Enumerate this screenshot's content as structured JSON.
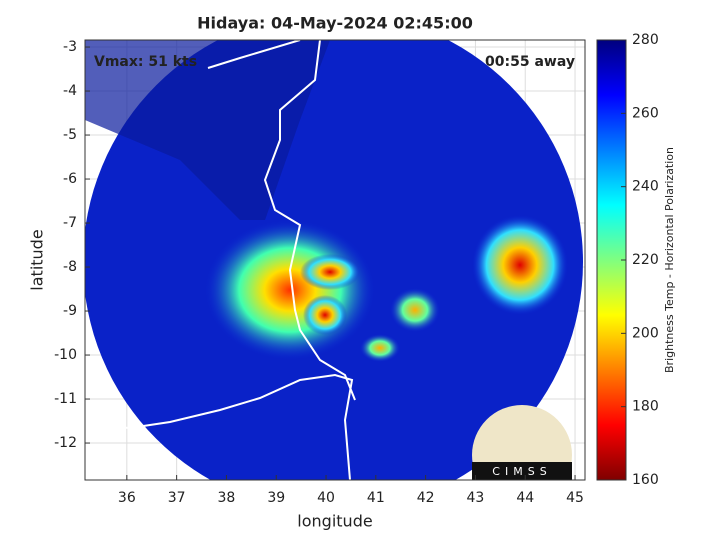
{
  "chart_data": {
    "type": "image",
    "title": "Hidaya: 04-May-2024 02:45:00",
    "annotations": [
      "Vmax: 51 kts",
      "00:55 away"
    ],
    "xlabel": "longitude",
    "ylabel": "latitude",
    "xlim": [
      35.16,
      45.2
    ],
    "ylim": [
      -12.84,
      -2.84
    ],
    "xticks": [
      36,
      37,
      38,
      39,
      40,
      41,
      42,
      43,
      44,
      45
    ],
    "yticks": [
      -3,
      -4,
      -5,
      -6,
      -7,
      -8,
      -9,
      -10,
      -11,
      -12
    ],
    "grid": true,
    "colorbar": {
      "label": "Brightness Temp - Horizontal Polarization",
      "lim": [
        160,
        280
      ],
      "ticks": [
        160,
        180,
        200,
        220,
        240,
        260,
        280
      ]
    },
    "logo": "CIMSS"
  }
}
